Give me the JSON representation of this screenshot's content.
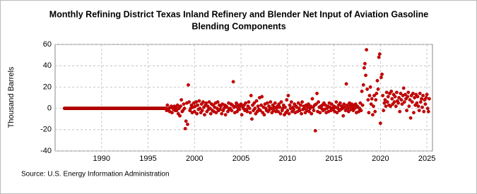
{
  "chart_data": {
    "type": "scatter",
    "title": [
      "Monthly Refining District Texas Inland Refinery and Blender Net Input of Aviation Gasoline",
      "Blending Components"
    ],
    "y_label": "Thousand Barrels",
    "source": "Source: U.S. Energy Information Administration",
    "color": "#cc0000",
    "xlim": [
      1985,
      2025.6
    ],
    "xticks": [
      1990,
      1995,
      2000,
      2005,
      2010,
      2015,
      2020,
      2025
    ],
    "ylim": [
      -40,
      60
    ],
    "yticks": [
      -40,
      -20,
      0,
      20,
      40,
      60
    ],
    "grid": true,
    "x": [
      1986.0,
      1986.08,
      1986.17,
      1986.25,
      1986.33,
      1986.42,
      1986.5,
      1986.58,
      1986.67,
      1986.75,
      1986.83,
      1986.92,
      1987.0,
      1987.08,
      1987.17,
      1987.25,
      1987.33,
      1987.42,
      1987.5,
      1987.58,
      1987.67,
      1987.75,
      1987.83,
      1987.92,
      1988.0,
      1988.08,
      1988.17,
      1988.25,
      1988.33,
      1988.42,
      1988.5,
      1988.58,
      1988.67,
      1988.75,
      1988.83,
      1988.92,
      1989.0,
      1989.08,
      1989.17,
      1989.25,
      1989.33,
      1989.42,
      1989.5,
      1989.58,
      1989.67,
      1989.75,
      1989.83,
      1989.92,
      1990.0,
      1990.08,
      1990.17,
      1990.25,
      1990.33,
      1990.42,
      1990.5,
      1990.58,
      1990.67,
      1990.75,
      1990.83,
      1990.92,
      1991.0,
      1991.08,
      1991.17,
      1991.25,
      1991.33,
      1991.42,
      1991.5,
      1991.58,
      1991.67,
      1991.75,
      1991.83,
      1991.92,
      1992.0,
      1992.08,
      1992.17,
      1992.25,
      1992.33,
      1992.42,
      1992.5,
      1992.58,
      1992.67,
      1992.75,
      1992.83,
      1992.92,
      1993.0,
      1993.08,
      1993.17,
      1993.25,
      1993.33,
      1993.42,
      1993.5,
      1993.58,
      1993.67,
      1993.75,
      1993.83,
      1993.92,
      1994.0,
      1994.08,
      1994.17,
      1994.25,
      1994.33,
      1994.42,
      1994.5,
      1994.58,
      1994.67,
      1994.75,
      1994.83,
      1994.92,
      1995.0,
      1995.08,
      1995.17,
      1995.25,
      1995.33,
      1995.42,
      1995.5,
      1995.58,
      1995.67,
      1995.75,
      1995.83,
      1995.92,
      1996.0,
      1996.08,
      1996.17,
      1996.25,
      1996.33,
      1996.42,
      1996.5,
      1996.58,
      1996.67,
      1996.75,
      1996.83,
      1996.92,
      1997.0,
      1997.08,
      1997.17,
      1997.25,
      1997.33,
      1997.42,
      1997.5,
      1997.58,
      1997.67,
      1997.75,
      1997.83,
      1997.92,
      1998.0,
      1998.08,
      1998.17,
      1998.25,
      1998.33,
      1998.42,
      1998.5,
      1998.58,
      1998.67,
      1998.75,
      1998.83,
      1998.92,
      1999.0,
      1999.08,
      1999.17,
      1999.25,
      1999.33,
      1999.42,
      1999.5,
      1999.58,
      1999.67,
      1999.75,
      1999.83,
      1999.92,
      2000.0,
      2000.08,
      2000.17,
      2000.25,
      2000.33,
      2000.42,
      2000.5,
      2000.58,
      2000.67,
      2000.75,
      2000.83,
      2000.92,
      2001.0,
      2001.08,
      2001.17,
      2001.25,
      2001.33,
      2001.42,
      2001.5,
      2001.58,
      2001.67,
      2001.75,
      2001.83,
      2001.92,
      2002.0,
      2002.08,
      2002.17,
      2002.25,
      2002.33,
      2002.42,
      2002.5,
      2002.58,
      2002.67,
      2002.75,
      2002.83,
      2002.92,
      2003.0,
      2003.08,
      2003.17,
      2003.25,
      2003.33,
      2003.42,
      2003.5,
      2003.58,
      2003.67,
      2003.75,
      2003.83,
      2003.92,
      2004.0,
      2004.08,
      2004.17,
      2004.25,
      2004.33,
      2004.42,
      2004.5,
      2004.58,
      2004.67,
      2004.75,
      2004.83,
      2004.92,
      2005.0,
      2005.08,
      2005.17,
      2005.25,
      2005.33,
      2005.42,
      2005.5,
      2005.58,
      2005.67,
      2005.75,
      2005.83,
      2005.92,
      2006.0,
      2006.08,
      2006.17,
      2006.25,
      2006.33,
      2006.42,
      2006.5,
      2006.58,
      2006.67,
      2006.75,
      2006.83,
      2006.92,
      2007.0,
      2007.08,
      2007.17,
      2007.25,
      2007.33,
      2007.42,
      2007.5,
      2007.58,
      2007.67,
      2007.75,
      2007.83,
      2007.92,
      2008.0,
      2008.08,
      2008.17,
      2008.25,
      2008.33,
      2008.42,
      2008.5,
      2008.58,
      2008.67,
      2008.75,
      2008.83,
      2008.92,
      2009.0,
      2009.08,
      2009.17,
      2009.25,
      2009.33,
      2009.42,
      2009.5,
      2009.58,
      2009.67,
      2009.75,
      2009.83,
      2009.92,
      2010.0,
      2010.08,
      2010.17,
      2010.25,
      2010.33,
      2010.42,
      2010.5,
      2010.58,
      2010.67,
      2010.75,
      2010.83,
      2010.92,
      2011.0,
      2011.08,
      2011.17,
      2011.25,
      2011.33,
      2011.42,
      2011.5,
      2011.58,
      2011.67,
      2011.75,
      2011.83,
      2011.92,
      2012.0,
      2012.08,
      2012.17,
      2012.25,
      2012.33,
      2012.42,
      2012.5,
      2012.58,
      2012.67,
      2012.75,
      2012.83,
      2012.92,
      2013.0,
      2013.08,
      2013.17,
      2013.25,
      2013.33,
      2013.42,
      2013.5,
      2013.58,
      2013.67,
      2013.75,
      2013.83,
      2013.92,
      2014.0,
      2014.08,
      2014.17,
      2014.25,
      2014.33,
      2014.42,
      2014.5,
      2014.58,
      2014.67,
      2014.75,
      2014.83,
      2014.92,
      2015.0,
      2015.08,
      2015.17,
      2015.25,
      2015.33,
      2015.42,
      2015.5,
      2015.58,
      2015.67,
      2015.75,
      2015.83,
      2015.92,
      2016.0,
      2016.08,
      2016.17,
      2016.25,
      2016.33,
      2016.42,
      2016.5,
      2016.58,
      2016.67,
      2016.75,
      2016.83,
      2016.92,
      2017.0,
      2017.08,
      2017.17,
      2017.25,
      2017.33,
      2017.42,
      2017.5,
      2017.58,
      2017.67,
      2017.75,
      2017.83,
      2017.92,
      2018.0,
      2018.08,
      2018.17,
      2018.25,
      2018.33,
      2018.42,
      2018.5,
      2018.58,
      2018.67,
      2018.75,
      2018.83,
      2018.92,
      2019.0,
      2019.08,
      2019.17,
      2019.25,
      2019.33,
      2019.42,
      2019.5,
      2019.58,
      2019.67,
      2019.75,
      2019.83,
      2019.92,
      2020.0,
      2020.08,
      2020.17,
      2020.25,
      2020.33,
      2020.42,
      2020.5,
      2020.58,
      2020.67,
      2020.75,
      2020.83,
      2020.92,
      2021.0,
      2021.08,
      2021.17,
      2021.25,
      2021.33,
      2021.42,
      2021.5,
      2021.58,
      2021.67,
      2021.75,
      2021.83,
      2021.92,
      2022.0,
      2022.08,
      2022.17,
      2022.25,
      2022.33,
      2022.42,
      2022.5,
      2022.58,
      2022.67,
      2022.75,
      2022.83,
      2022.92,
      2023.0,
      2023.08,
      2023.17,
      2023.25,
      2023.33,
      2023.42,
      2023.5,
      2023.58,
      2023.67,
      2023.75,
      2023.83,
      2023.92,
      2024.0,
      2024.08,
      2024.17,
      2024.25,
      2024.33,
      2024.42,
      2024.5,
      2024.58,
      2024.67,
      2024.75,
      2024.83,
      2024.92,
      2025.0,
      2025.08,
      2025.17,
      2025.25
    ],
    "values": [
      0,
      0,
      0,
      0,
      0,
      0,
      0,
      0,
      0,
      0,
      0,
      0,
      0,
      0,
      0,
      0,
      0,
      0,
      0,
      0,
      0,
      0,
      0,
      0,
      0,
      0,
      0,
      0,
      0,
      0,
      0,
      0,
      0,
      0,
      0,
      0,
      0,
      0,
      0,
      0,
      0,
      0,
      0,
      0,
      0,
      0,
      0,
      0,
      0,
      0,
      0,
      0,
      0,
      0,
      0,
      0,
      0,
      0,
      0,
      0,
      0,
      0,
      0,
      0,
      0,
      0,
      0,
      0,
      0,
      0,
      0,
      0,
      0,
      0,
      0,
      0,
      0,
      0,
      0,
      0,
      0,
      0,
      0,
      0,
      0,
      0,
      0,
      0,
      0,
      0,
      0,
      0,
      0,
      0,
      0,
      0,
      0,
      0,
      0,
      0,
      0,
      0,
      0,
      0,
      0,
      0,
      0,
      0,
      0,
      0,
      0,
      0,
      0,
      0,
      0,
      0,
      0,
      0,
      0,
      0,
      0,
      0,
      0,
      0,
      0,
      0,
      0,
      0,
      0,
      0,
      0,
      0,
      -2,
      3,
      -1,
      0,
      -3,
      1,
      2,
      -4,
      0,
      -1,
      2,
      -2,
      1,
      -2,
      3,
      -5,
      0,
      -7,
      2,
      8,
      -3,
      -2,
      4,
      0,
      -19,
      -12,
      5,
      -15,
      22,
      6,
      -2,
      0,
      3,
      -4,
      1,
      5,
      -3,
      2,
      6,
      -5,
      3,
      -1,
      7,
      0,
      -4,
      4,
      -2,
      6,
      1,
      -6,
      3,
      5,
      -3,
      2,
      -1,
      6,
      0,
      -5,
      4,
      -2,
      3,
      -3,
      1,
      5,
      -4,
      0,
      6,
      -2,
      3,
      -1,
      2,
      -5,
      4,
      -2,
      0,
      3,
      -6,
      2,
      1,
      -3,
      5,
      -1,
      0,
      4,
      -2,
      3,
      25,
      1,
      -4,
      2,
      5,
      -3,
      0,
      3,
      -1,
      2,
      4,
      -6,
      2,
      0,
      3,
      -2,
      5,
      -1,
      -3,
      2,
      6,
      0,
      -4,
      12,
      -10,
      3,
      -2,
      5,
      0,
      -5,
      7,
      -3,
      2,
      -1,
      10,
      -2,
      3,
      11,
      -4,
      1,
      -6,
      4,
      0,
      -2,
      5,
      -3,
      2,
      -1,
      6,
      0,
      -4,
      3,
      -2,
      1,
      5,
      -3,
      0,
      2,
      -3,
      4,
      1,
      -5,
      6,
      -2,
      0,
      3,
      -6,
      1,
      -4,
      8,
      -2,
      12,
      -5,
      3,
      0,
      6,
      -3,
      1,
      -1,
      4,
      -4,
      2,
      1,
      -3,
      5,
      0,
      -2,
      3,
      -5,
      6,
      -1,
      2,
      0,
      -4,
      3,
      -2,
      1,
      4,
      -3,
      0,
      2,
      -5,
      9,
      1,
      -2,
      3,
      -21,
      4,
      14,
      -3,
      6,
      1,
      -4,
      2,
      0,
      3,
      -2,
      5,
      -1,
      3,
      -4,
      0,
      2,
      -3,
      5,
      1,
      -2,
      4,
      0,
      -1,
      2,
      -3,
      1,
      6,
      -4,
      0,
      3,
      -2,
      5,
      -1,
      2,
      0,
      -7,
      4,
      1,
      -2,
      23,
      3,
      0,
      -3,
      5,
      2,
      -1,
      4,
      1,
      -2,
      3,
      0,
      4,
      -4,
      2,
      1,
      -3,
      0,
      5,
      -2,
      16,
      3,
      22,
      38,
      42,
      31,
      55,
      18,
      8,
      -4,
      12,
      20,
      4,
      9,
      -6,
      2,
      12,
      -3,
      8,
      14,
      26,
      18,
      48,
      51,
      -14,
      29,
      32,
      12,
      -2,
      5,
      8,
      2,
      15,
      6,
      11,
      3,
      14,
      2,
      16,
      9,
      4,
      13,
      6,
      11,
      2,
      15,
      7,
      5,
      10,
      -3,
      14,
      8,
      4,
      12,
      19,
      6,
      13,
      9,
      -2,
      11,
      15,
      2,
      8,
      -9,
      12,
      6,
      14,
      -4,
      10,
      3,
      13,
      5,
      11,
      2,
      -2,
      14,
      6,
      9,
      1,
      12,
      -3,
      8,
      4,
      10,
      13,
      0,
      -3,
      9
    ]
  }
}
